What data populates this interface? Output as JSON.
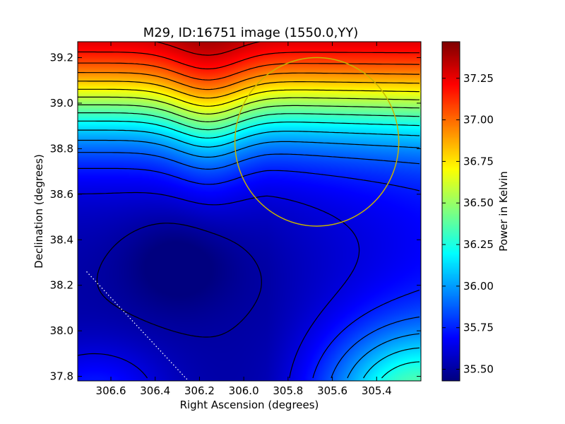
{
  "chart_data": {
    "type": "heatmap",
    "title": "M29, ID:16751 image (1550.0,YY)",
    "xlabel": "Right Ascension (degrees)",
    "ylabel": "Declination (degrees)",
    "xlim": [
      306.75,
      305.2
    ],
    "ylim": [
      37.78,
      39.27
    ],
    "x_direction": "decreasing",
    "xticks": [
      306.6,
      306.4,
      306.2,
      306.0,
      305.8,
      305.6,
      305.4
    ],
    "xtick_labels": [
      "306.6",
      "306.4",
      "306.2",
      "306.0",
      "305.8",
      "305.6",
      "305.4"
    ],
    "yticks": [
      37.8,
      38.0,
      38.2,
      38.4,
      38.6,
      38.8,
      39.0,
      39.2
    ],
    "ytick_labels": [
      "37.8",
      "38.0",
      "38.2",
      "38.4",
      "38.6",
      "38.8",
      "39.0",
      "39.2"
    ],
    "colormap": "jet",
    "colorbar": {
      "label": "Power in Kelvin",
      "min": 35.43,
      "max": 37.47,
      "ticks": [
        35.5,
        35.75,
        36.0,
        36.25,
        36.5,
        36.75,
        37.0,
        37.25
      ],
      "tick_labels": [
        "35.50",
        "35.75",
        "36.00",
        "36.25",
        "36.50",
        "36.75",
        "37.00",
        "37.25"
      ]
    },
    "field_samples": {
      "comment_units": "Kelvin",
      "max_near": {
        "ra": 305.25,
        "dec": 39.25,
        "value": 37.45
      },
      "min_near": {
        "ra": 306.35,
        "dec": 38.3,
        "value": 35.44
      },
      "lower_right_lobe": {
        "ra": 305.3,
        "dec": 37.85,
        "value": 36.1
      }
    },
    "contours": true,
    "contour_color": "#000000",
    "annotations": [
      {
        "type": "circle",
        "center": {
          "ra": 305.67,
          "dec": 38.83
        },
        "radius_deg": 0.37,
        "color": "#c8b400"
      },
      {
        "type": "dotted-line",
        "from": {
          "ra": 306.71,
          "dec": 38.26
        },
        "to": {
          "ra": 306.25,
          "dec": 37.78
        },
        "color": "#ffffff"
      }
    ],
    "grid": false
  }
}
